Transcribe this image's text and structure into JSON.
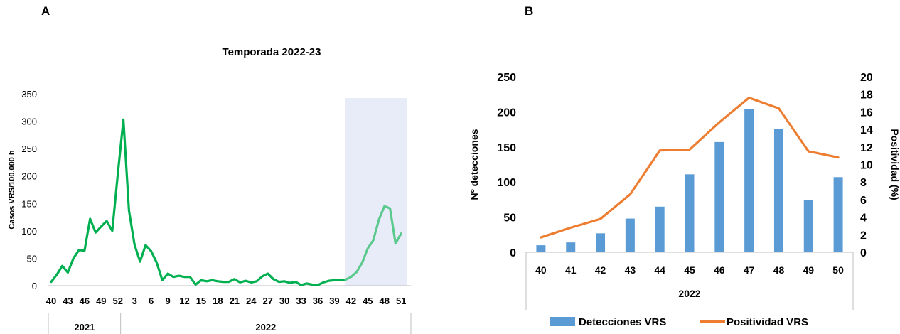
{
  "panels": {
    "a_label": "A",
    "b_label": "B"
  },
  "chart_data": [
    {
      "type": "line",
      "title": "Temporada 2022-23",
      "ylabel": "Casos VRS/100.000 h",
      "xlabel": "",
      "ylim": [
        0,
        350
      ],
      "yticks": [
        "0",
        "50",
        "100",
        "150",
        "200",
        "250",
        "300",
        "350"
      ],
      "xtick_labels": [
        "40",
        "43",
        "46",
        "49",
        "52",
        "3",
        "6",
        "9",
        "12",
        "15",
        "18",
        "21",
        "24",
        "27",
        "30",
        "33",
        "36",
        "39",
        "42",
        "45",
        "48",
        "51"
      ],
      "year_groups": [
        {
          "label": "2021",
          "from_index": 0,
          "to_index": 12
        },
        {
          "label": "2022",
          "from_index": 13,
          "to_index": 64
        }
      ],
      "highlight_from_index": 53,
      "colors": {
        "season_2021_22": "#00b050",
        "season_2022_23": "#5cc98f",
        "highlight": "#e8ebf8"
      },
      "series": [
        {
          "values": [
            7,
            20,
            36,
            24,
            50,
            65,
            64,
            122,
            97,
            108,
            118,
            100,
            205,
            303,
            137,
            75,
            44,
            74,
            63,
            42,
            10,
            22,
            16,
            18,
            16,
            16,
            2,
            10,
            8,
            10,
            8,
            7,
            7,
            12,
            6,
            9,
            6,
            8,
            17,
            22,
            12,
            7,
            8,
            5,
            7,
            1,
            4,
            2,
            1,
            6,
            9,
            10,
            10,
            11
          ]
        },
        {
          "start_index": 53,
          "values": [
            11,
            16,
            25,
            42,
            68,
            83,
            120,
            145,
            141,
            77,
            95
          ]
        }
      ]
    },
    {
      "type": "bar+line",
      "categories": [
        "40",
        "41",
        "42",
        "43",
        "44",
        "45",
        "46",
        "47",
        "48",
        "49",
        "50"
      ],
      "group_label": "2022",
      "ylabel": "Nº detecciones",
      "ylabel_right": "Positividad (%)",
      "ylim": [
        0,
        250
      ],
      "ylim_right": [
        0,
        20
      ],
      "yticks": [
        "0",
        "50",
        "100",
        "150",
        "200",
        "250"
      ],
      "yticks_right": [
        "0",
        "2",
        "4",
        "6",
        "8",
        "10",
        "12",
        "14",
        "16",
        "18",
        "20"
      ],
      "series": [
        {
          "name": "Detecciones VRS",
          "kind": "bar",
          "color": "#5b9bd5",
          "values": [
            10,
            14,
            27,
            48,
            65,
            111,
            157,
            204,
            176,
            74,
            107
          ]
        },
        {
          "name": "Positividad VRS",
          "kind": "line",
          "color": "#ed7d31",
          "values": [
            1.7,
            2.8,
            3.8,
            6.6,
            11.6,
            11.7,
            14.8,
            17.6,
            16.4,
            11.5,
            10.8
          ]
        }
      ],
      "legend": "bottom"
    }
  ]
}
